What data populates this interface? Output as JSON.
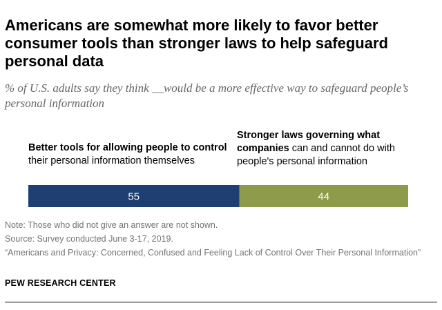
{
  "title": "Americans are somewhat more likely to favor better consumer tools than stronger laws to help safeguard personal data",
  "subtitle": "% of U.S. adults say they think __would be a more effective way to safeguard people’s personal information",
  "chart_data": {
    "type": "bar",
    "orientation": "horizontal-stacked",
    "categories": [
      {
        "bold": "Better tools for allowing people to control",
        "rest": " their personal information themselves",
        "value": 55,
        "color": "#1f3f73"
      },
      {
        "bold": "Stronger laws governing what companies",
        "rest": " can and cannot do with people's personal information",
        "value": 44,
        "color": "#8e9b4b"
      }
    ],
    "grid": false
  },
  "notes": {
    "note": "Note: Those who did not give an answer are not shown.",
    "source": "Source: Survey conducted June 3-17, 2019.",
    "report": "“Americans and Privacy: Concerned, Confused and Feeling Lack of Control Over Their Personal Information”"
  },
  "brand": "PEW RESEARCH CENTER"
}
